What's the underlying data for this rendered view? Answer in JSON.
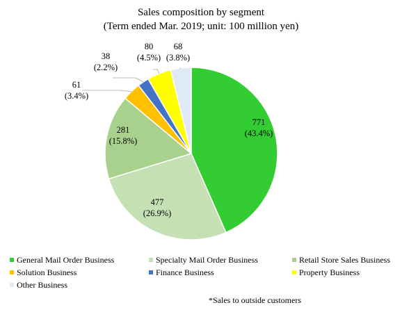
{
  "chart_data": {
    "type": "pie",
    "title": "Sales composition by segment",
    "subtitle": "(Term ended Mar. 2019; unit: 100 million yen)",
    "footnote": "*Sales to outside customers",
    "legend_position": "bottom",
    "slices": [
      {
        "name": "General Mail Order Business",
        "value": 771,
        "value_label": "771",
        "pct_label": "(43.4%)",
        "color": "#33cc33"
      },
      {
        "name": "Specialty Mail Order Business",
        "value": 477,
        "value_label": "477",
        "pct_label": "(26.9%)",
        "color": "#c5e0b3"
      },
      {
        "name": "Retail Store Sales Business",
        "value": 281,
        "value_label": "281",
        "pct_label": "(15.8%)",
        "color": "#a9d18e"
      },
      {
        "name": "Solution Business",
        "value": 61,
        "value_label": "61",
        "pct_label": "(3.4%)",
        "color": "#ffc000"
      },
      {
        "name": "Finance Business",
        "value": 38,
        "value_label": "38",
        "pct_label": "(2.2%)",
        "color": "#4472c4"
      },
      {
        "name": "Property Business",
        "value": 80,
        "value_label": "80",
        "pct_label": "(4.5%)",
        "color": "#ffff00"
      },
      {
        "name": "Other Business",
        "value": 68,
        "value_label": "68",
        "pct_label": "(3.8%)",
        "color": "#deebf7"
      }
    ]
  }
}
